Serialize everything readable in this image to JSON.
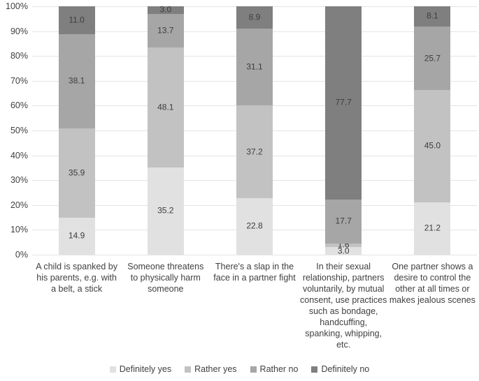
{
  "chart_data": {
    "type": "bar",
    "subtype": "stacked-100-percent",
    "title": "",
    "xlabel": "",
    "ylabel": "",
    "ylim": [
      0,
      100
    ],
    "grid": true,
    "legend_position": "bottom",
    "y_ticks": [
      "100%",
      "90%",
      "80%",
      "70%",
      "60%",
      "50%",
      "40%",
      "30%",
      "20%",
      "10%",
      "0%"
    ],
    "categories": [
      "A child is spanked by his parents, e.g. with a belt, a stick",
      "Someone threatens to physically harm someone",
      "There's a slap in the face in a partner fight",
      "In their sexual relationship, partners voluntarily, by mutual consent, use practices such as bondage, handcuffing, spanking, whipping, etc.",
      "One partner shows a desire to control the other at all times or makes jealous scenes"
    ],
    "category_lines": [
      [
        "A child is spanked by",
        "his parents, e.g. with",
        "a belt, a stick"
      ],
      [
        "Someone threatens",
        "to physically harm",
        "someone"
      ],
      [
        "There's a slap in the",
        "face in a partner fight"
      ],
      [
        "In their sexual",
        "relationship, partners",
        "voluntarily, by mutual",
        "consent, use practices",
        "such as bondage,",
        "handcuffing,",
        "spanking, whipping,",
        "etc."
      ],
      [
        "One partner shows a",
        "desire to control the",
        "other at all times or",
        "makes jealous scenes"
      ]
    ],
    "series": [
      {
        "name": "Definitely yes",
        "color": "#e1e1e1",
        "values": [
          14.9,
          35.2,
          22.8,
          3.0,
          21.2
        ]
      },
      {
        "name": "Rather yes",
        "color": "#c2c2c2",
        "values": [
          35.9,
          48.1,
          37.2,
          1.6,
          45.0
        ]
      },
      {
        "name": "Rather no",
        "color": "#a6a6a6",
        "values": [
          38.1,
          13.7,
          31.1,
          17.7,
          25.7
        ]
      },
      {
        "name": "Definitely no",
        "color": "#7f7f7f",
        "values": [
          11.0,
          3.0,
          8.9,
          77.7,
          8.1
        ]
      }
    ]
  },
  "style": {
    "gridline_color": "#e4e4e4",
    "text_color": "#404040",
    "background": "#ffffff"
  }
}
